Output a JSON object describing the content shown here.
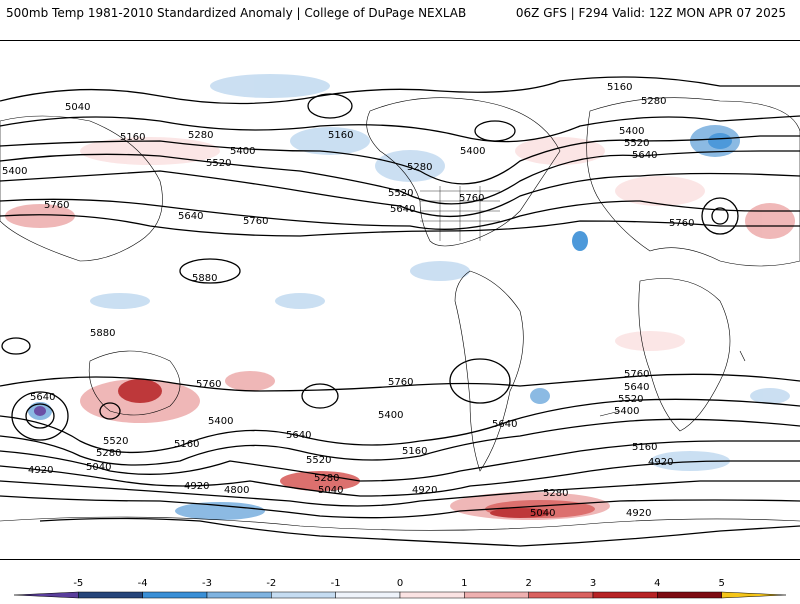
{
  "header": {
    "left_title": "500mb Temp 1981-2010 Standardized Anomaly | College of DuPage NEXLAB",
    "right_title": "06Z GFS | F294 Valid: 12Z MON APR 07 2025"
  },
  "map": {
    "contour_labels": [
      "5040",
      "5160",
      "5280",
      "5400",
      "5520",
      "5640",
      "5760",
      "5880",
      "4920",
      "4800"
    ],
    "visible_labels": [
      "5040",
      "5160",
      "5280",
      "5400",
      "5400",
      "5520",
      "5640",
      "5760",
      "5760",
      "5880",
      "5160",
      "5280",
      "5400",
      "5520",
      "5640",
      "5760",
      "5160",
      "5280",
      "5400",
      "5520",
      "5640",
      "5760",
      "5880",
      "5640",
      "5760",
      "5400",
      "5640",
      "5520",
      "5280",
      "5160",
      "5040",
      "4920",
      "4920",
      "4800",
      "5520",
      "5280",
      "5040",
      "5160",
      "5400",
      "5760",
      "5640",
      "4920",
      "5280",
      "5040",
      "4920",
      "5760",
      "5640",
      "5520",
      "5400",
      "5160",
      "4920"
    ]
  },
  "colorbar": {
    "ticks": [
      "-5",
      "-4",
      "-3",
      "-2",
      "-1",
      "0",
      "1",
      "2",
      "3",
      "4",
      "5"
    ],
    "colors": [
      "#5a3e9c",
      "#26457a",
      "#3a8fd6",
      "#7fb3e0",
      "#c5dcf1",
      "#eef3fa",
      "#fbe3e3",
      "#eeb0b0",
      "#d9615f",
      "#b72325",
      "#7d0c12",
      "#f5c518"
    ]
  }
}
